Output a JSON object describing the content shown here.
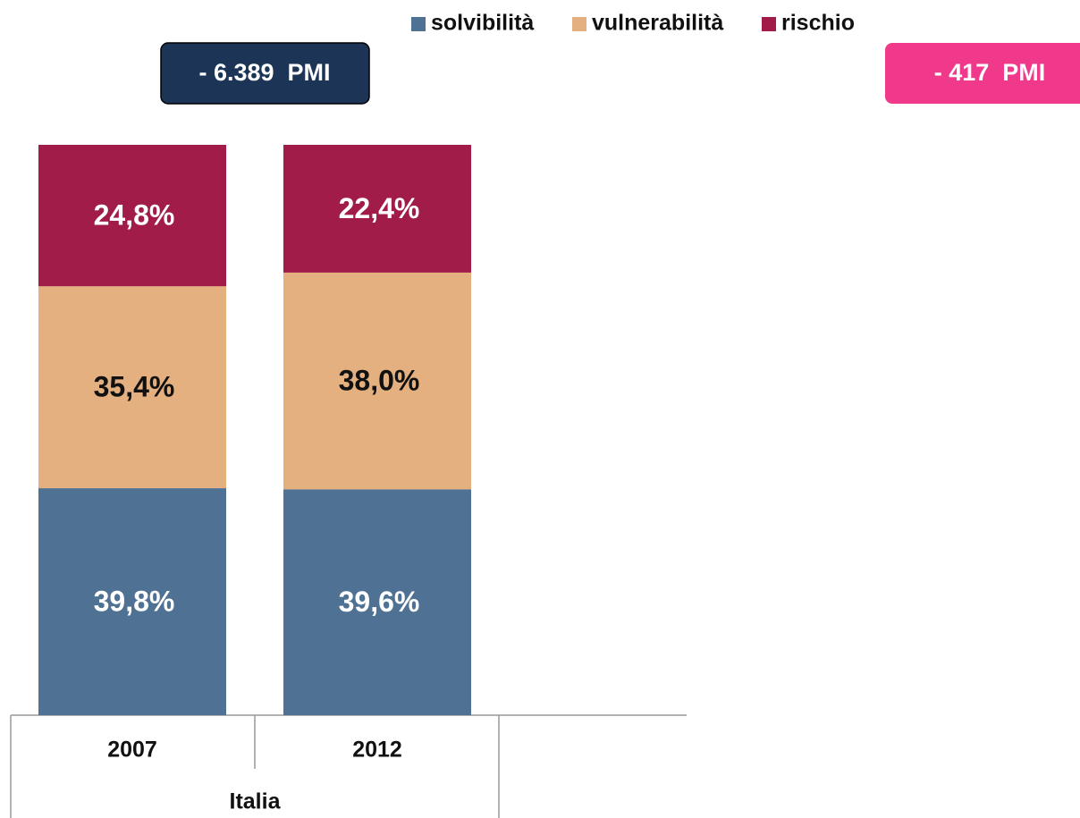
{
  "chart_data": {
    "type": "stacked_bar",
    "categories": [
      "2007",
      "2012"
    ],
    "group_label": "Italia",
    "ylim": [
      0,
      100
    ],
    "series": [
      {
        "name": "solvibilità",
        "color": "#4e7194",
        "label_color": "#ffffff",
        "values": [
          39.8,
          39.6
        ],
        "value_labels": [
          "39,8%",
          "39,6%"
        ]
      },
      {
        "name": "vulnerabilità",
        "color": "#e4b07f",
        "label_color": "#111111",
        "values": [
          35.4,
          38.0
        ],
        "value_labels": [
          "35,4%",
          "38,0%"
        ]
      },
      {
        "name": "rischio",
        "color": "#a11c48",
        "label_color": "#ffffff",
        "values": [
          24.8,
          22.4
        ],
        "value_labels": [
          "24,8%",
          "22,4%"
        ]
      }
    ],
    "annotations": [
      {
        "text": "- 6.389  PMI",
        "color": "#1c3557"
      },
      {
        "text": "- 417  PMI",
        "color": "#f0398a"
      }
    ]
  }
}
